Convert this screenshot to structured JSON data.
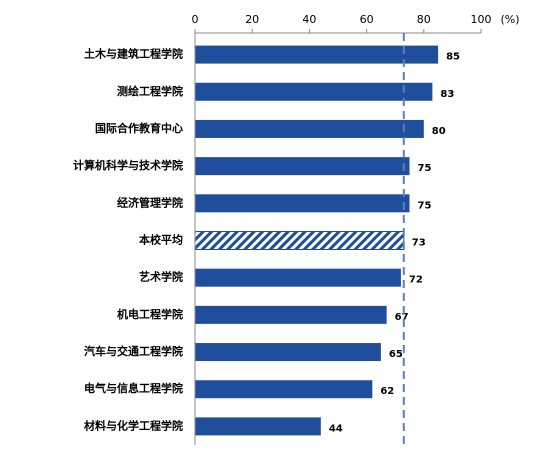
{
  "chart_data": {
    "type": "hbar",
    "xlabel": "(%)",
    "categories": [
      "土木与建筑工程学院",
      "测绘工程学院",
      "国际合作教育中心",
      "计算机科学与技术学院",
      "经济管理学院",
      "本校平均",
      "艺术学院",
      "机电工程学院",
      "汽车与交通工程学院",
      "电气与信息工程学院",
      "材料与化学工程学院"
    ],
    "values": [
      85,
      83,
      80,
      75,
      75,
      73,
      72,
      67,
      65,
      62,
      44
    ],
    "color": "#1f4e9c",
    "hatched_index": 5,
    "reference_line": 73,
    "reference_color": "#5b7fb8",
    "xlim": [
      0,
      100
    ],
    "xticks": [
      0,
      20,
      40,
      60,
      80,
      100
    ]
  }
}
